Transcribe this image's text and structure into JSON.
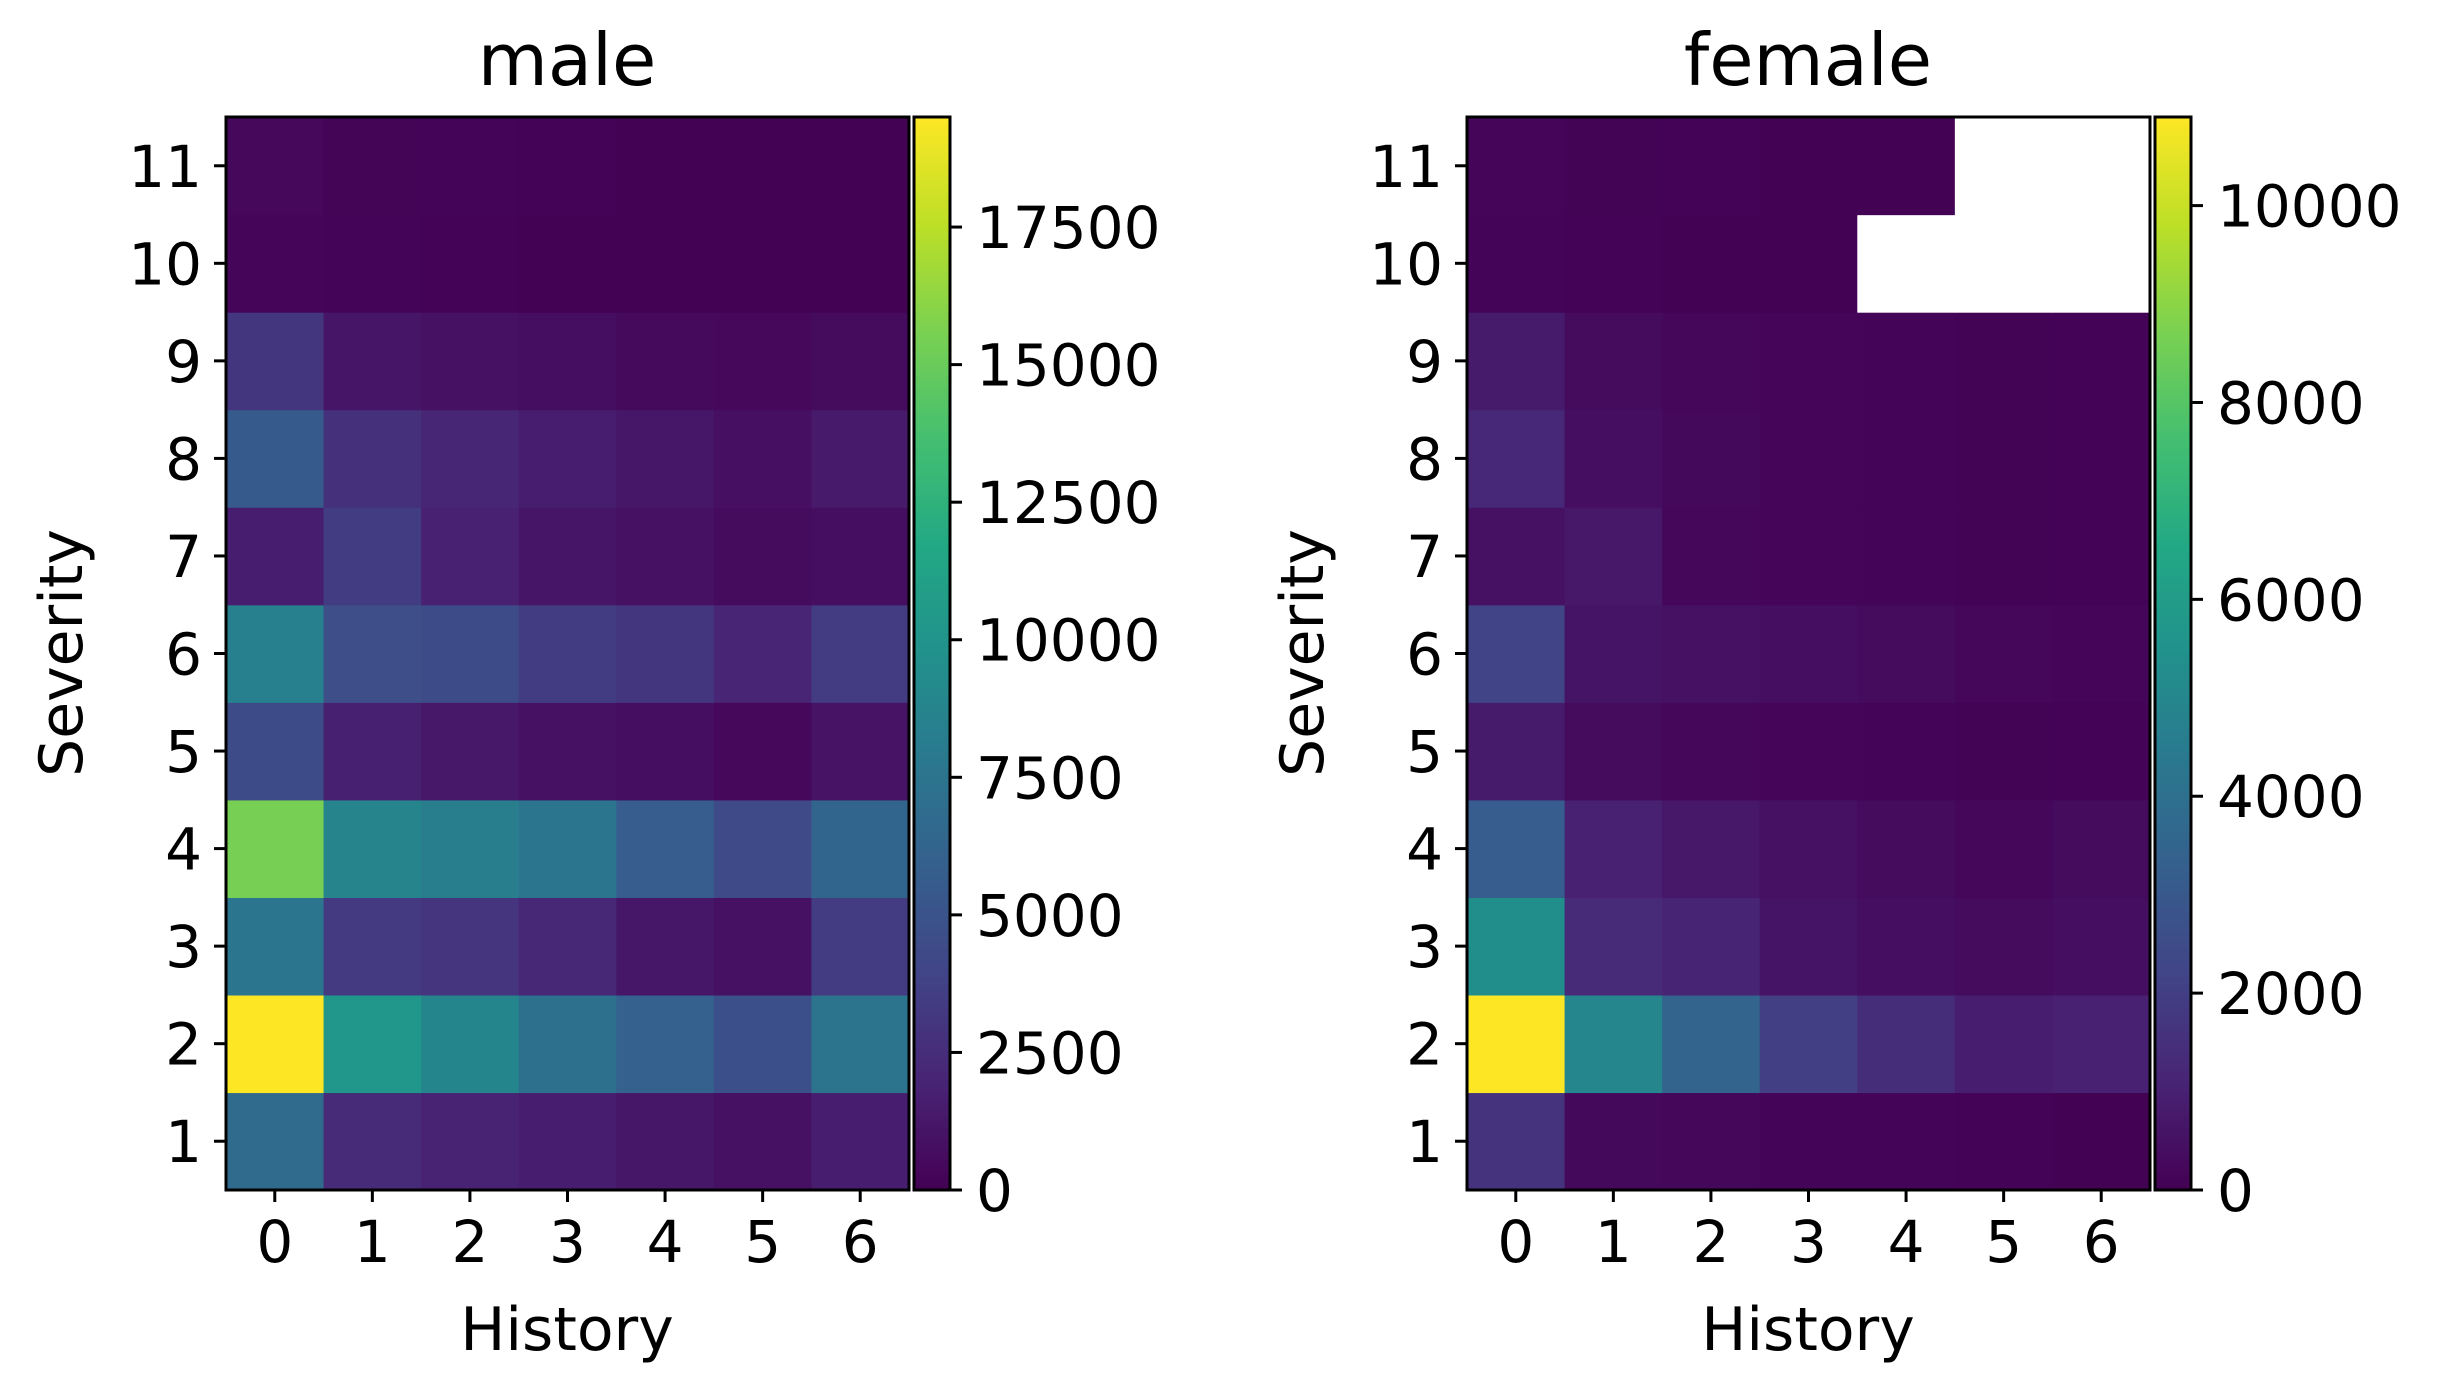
{
  "chart_data": [
    {
      "type": "heatmap",
      "title": "male",
      "xlabel": "History",
      "ylabel": "Severity",
      "x_categories": [
        "0",
        "1",
        "2",
        "3",
        "4",
        "5",
        "6"
      ],
      "y_categories": [
        "1",
        "2",
        "3",
        "4",
        "5",
        "6",
        "7",
        "8",
        "9",
        "10",
        "11"
      ],
      "colorbar": {
        "min": 0,
        "max": 19500,
        "ticks": [
          "0",
          "2500",
          "5000",
          "7500",
          "10000",
          "12500",
          "15000",
          "17500"
        ]
      },
      "colormap": "viridis",
      "values": [
        [
          6800,
          2300,
          1900,
          1600,
          1200,
          900,
          1600
        ],
        [
          19500,
          10200,
          8800,
          7200,
          6000,
          4800,
          7400
        ],
        [
          7600,
          3300,
          2900,
          2200,
          1200,
          900,
          3400
        ],
        [
          15500,
          8700,
          8300,
          7600,
          5700,
          4300,
          6300
        ],
        [
          4500,
          1700,
          1300,
          900,
          700,
          400,
          1000
        ],
        [
          8400,
          4600,
          4400,
          3500,
          3000,
          2000,
          3400
        ],
        [
          1600,
          3500,
          1800,
          1100,
          900,
          600,
          700
        ],
        [
          5500,
          2700,
          2100,
          1600,
          1200,
          800,
          1400
        ],
        [
          3000,
          1100,
          900,
          700,
          500,
          400,
          600
        ],
        [
          300,
          150,
          100,
          80,
          60,
          40,
          30
        ],
        [
          400,
          200,
          150,
          100,
          80,
          60,
          40
        ]
      ]
    },
    {
      "type": "heatmap",
      "title": "female",
      "xlabel": "History",
      "ylabel": "Severity",
      "x_categories": [
        "0",
        "1",
        "2",
        "3",
        "4",
        "5",
        "6"
      ],
      "y_categories": [
        "1",
        "2",
        "3",
        "4",
        "5",
        "6",
        "7",
        "8",
        "9",
        "10",
        "11"
      ],
      "colorbar": {
        "min": 0,
        "max": 10900,
        "ticks": [
          "0",
          "2000",
          "4000",
          "6000",
          "8000",
          "10000"
        ]
      },
      "colormap": "viridis",
      "values": [
        [
          1600,
          250,
          180,
          120,
          90,
          60,
          40
        ],
        [
          10900,
          5000,
          3500,
          2000,
          1400,
          900,
          1000
        ],
        [
          5300,
          1300,
          1100,
          600,
          400,
          300,
          400
        ],
        [
          3200,
          1000,
          700,
          500,
          300,
          200,
          300
        ],
        [
          800,
          300,
          200,
          150,
          100,
          80,
          60
        ],
        [
          2200,
          600,
          500,
          400,
          300,
          200,
          150
        ],
        [
          500,
          700,
          200,
          150,
          100,
          80,
          60
        ],
        [
          1200,
          400,
          250,
          150,
          100,
          80,
          60
        ],
        [
          800,
          300,
          200,
          150,
          100,
          80,
          60
        ],
        [
          100,
          50,
          30,
          20,
          null,
          null,
          null
        ],
        [
          150,
          80,
          50,
          30,
          20,
          null,
          null
        ]
      ]
    }
  ]
}
